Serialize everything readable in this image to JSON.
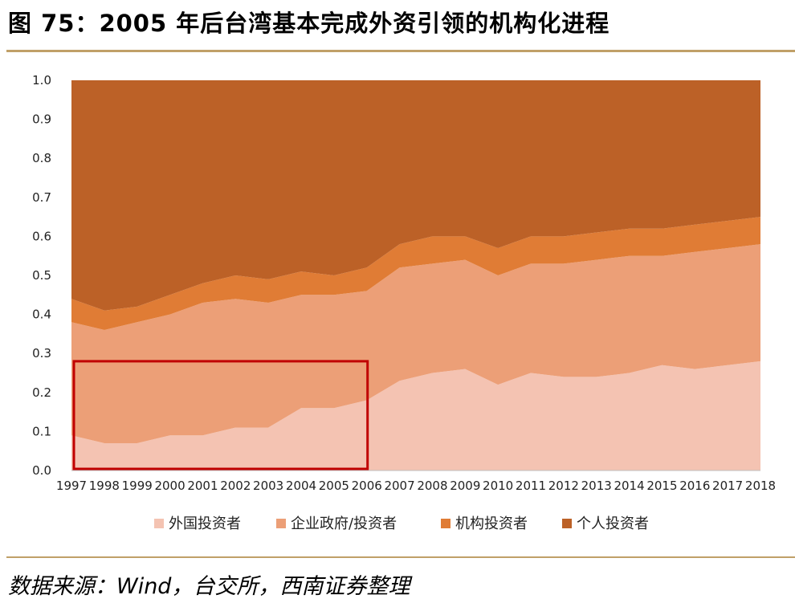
{
  "title": "图 75：2005 年后台湾基本完成外资引领的机构化进程",
  "source": "数据来源：Wind，台交所，西南证券整理",
  "colors": {
    "foreign": "#f4c3b2",
    "enterprise": "#ec9f77",
    "institutional": "#e07c35",
    "individual": "#bc6127",
    "highlight": "#c00000"
  },
  "chart_data": {
    "type": "area",
    "stacked": true,
    "title": "",
    "xlabel": "",
    "ylabel": "",
    "ylim": [
      0,
      1
    ],
    "yticks": [
      "0.0",
      "0.1",
      "0.2",
      "0.3",
      "0.4",
      "0.5",
      "0.6",
      "0.7",
      "0.8",
      "0.9",
      "1.0"
    ],
    "ytick_values": [
      0,
      0.1,
      0.2,
      0.3,
      0.4,
      0.5,
      0.6,
      0.7,
      0.8,
      0.9,
      1.0
    ],
    "categories": [
      "1997",
      "1998",
      "1999",
      "2000",
      "2001",
      "2002",
      "2003",
      "2004",
      "2005",
      "2006",
      "2007",
      "2008",
      "2009",
      "2010",
      "2011",
      "2012",
      "2013",
      "2014",
      "2015",
      "2016",
      "2017",
      "2018"
    ],
    "series": [
      {
        "name": "外国投资者",
        "values": [
          0.09,
          0.07,
          0.07,
          0.09,
          0.09,
          0.11,
          0.11,
          0.16,
          0.16,
          0.18,
          0.23,
          0.25,
          0.26,
          0.22,
          0.25,
          0.24,
          0.24,
          0.25,
          0.27,
          0.26,
          0.27,
          0.28
        ]
      },
      {
        "name": "企业政府/投资者",
        "values": [
          0.29,
          0.29,
          0.31,
          0.31,
          0.34,
          0.33,
          0.32,
          0.29,
          0.29,
          0.28,
          0.29,
          0.28,
          0.28,
          0.28,
          0.28,
          0.29,
          0.3,
          0.3,
          0.28,
          0.3,
          0.3,
          0.3
        ]
      },
      {
        "name": "机构投资者",
        "values": [
          0.06,
          0.05,
          0.04,
          0.05,
          0.05,
          0.06,
          0.06,
          0.06,
          0.05,
          0.06,
          0.06,
          0.07,
          0.06,
          0.07,
          0.07,
          0.07,
          0.07,
          0.07,
          0.07,
          0.07,
          0.07,
          0.07
        ]
      },
      {
        "name": "个人投资者",
        "values": [
          0.56,
          0.59,
          0.58,
          0.55,
          0.52,
          0.5,
          0.51,
          0.49,
          0.5,
          0.48,
          0.42,
          0.4,
          0.4,
          0.43,
          0.4,
          0.4,
          0.39,
          0.38,
          0.38,
          0.37,
          0.36,
          0.35
        ]
      }
    ],
    "annotation": {
      "type": "highlight-box",
      "x_range": [
        "1997",
        "2006"
      ],
      "y_range": [
        0,
        0.28
      ]
    },
    "legend_position": "bottom"
  }
}
